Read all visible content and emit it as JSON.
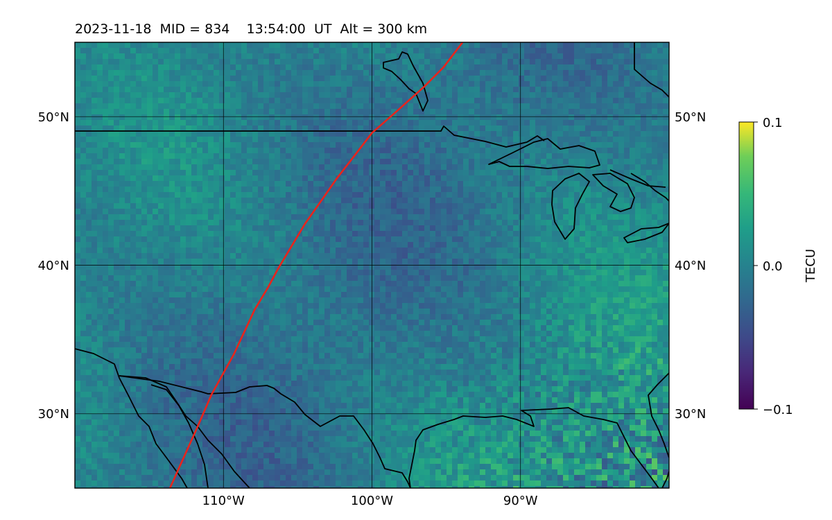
{
  "title": "2023-11-18  MID = 834    13:54:00  UT  Alt = 300 km",
  "map": {
    "lon_range": [
      -120,
      -80
    ],
    "lat_range": [
      25,
      55
    ],
    "grid_lons": [
      -110,
      -100,
      -90
    ],
    "grid_lats": [
      30,
      40,
      50
    ],
    "x_tick_labels": [
      "110°W",
      "100°W",
      "90°W"
    ],
    "y_tick_labels_left": [
      "30°N",
      "40°N",
      "50°N"
    ],
    "y_tick_labels_right": [
      "30°N",
      "40°N",
      "50°N"
    ],
    "path_color": "#e8241c",
    "coast_color": "#000000",
    "path_points": [
      [
        -113.6,
        25
      ],
      [
        -112.7,
        27
      ],
      [
        -111.8,
        29
      ],
      [
        -110.8,
        31.3
      ],
      [
        -109.3,
        34
      ],
      [
        -107.9,
        37
      ],
      [
        -107,
        38.5
      ],
      [
        -106.3,
        39.8
      ],
      [
        -105.4,
        41.3
      ],
      [
        -104.5,
        42.8
      ],
      [
        -103.3,
        44.5
      ],
      [
        -102.4,
        45.8
      ],
      [
        -101,
        47.6
      ],
      [
        -100,
        48.9
      ],
      [
        -98.4,
        50.3
      ],
      [
        -96.5,
        52
      ],
      [
        -95.2,
        53.3
      ],
      [
        -93.9,
        55
      ]
    ]
  },
  "colorbar": {
    "label": "TECU",
    "min": -0.1,
    "max": 0.1,
    "tick_labels": [
      "0.1",
      "0.0",
      "−0.1"
    ],
    "colormap": "viridis"
  }
}
